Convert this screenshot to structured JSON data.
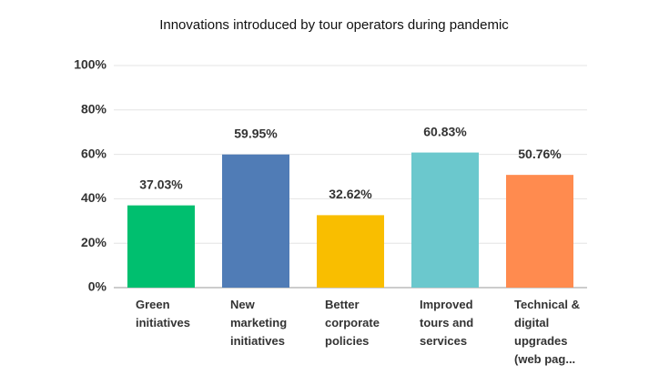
{
  "chart_data": {
    "type": "bar",
    "title": "Innovations introduced by tour operators during pandemic",
    "categories": [
      "Green initiatives",
      "New marketing initiatives",
      "Better corporate policies",
      "Improved tours and services",
      "Technical & digital upgrades (web pag..."
    ],
    "values": [
      37.03,
      59.95,
      32.62,
      60.83,
      50.76
    ],
    "value_labels": [
      "37.03%",
      "59.95%",
      "32.62%",
      "60.83%",
      "50.76%"
    ],
    "colors": [
      "#00bf6f",
      "#507cb6",
      "#f9be00",
      "#6bc8cd",
      "#ff8b4f"
    ],
    "ylim": [
      0,
      100
    ],
    "yticks": [
      {
        "value": 0,
        "label": "0%"
      },
      {
        "value": 20,
        "label": "20%"
      },
      {
        "value": 40,
        "label": "40%"
      },
      {
        "value": 60,
        "label": "60%"
      },
      {
        "value": 80,
        "label": "80%"
      },
      {
        "value": 100,
        "label": "100%"
      }
    ],
    "grid": true
  }
}
